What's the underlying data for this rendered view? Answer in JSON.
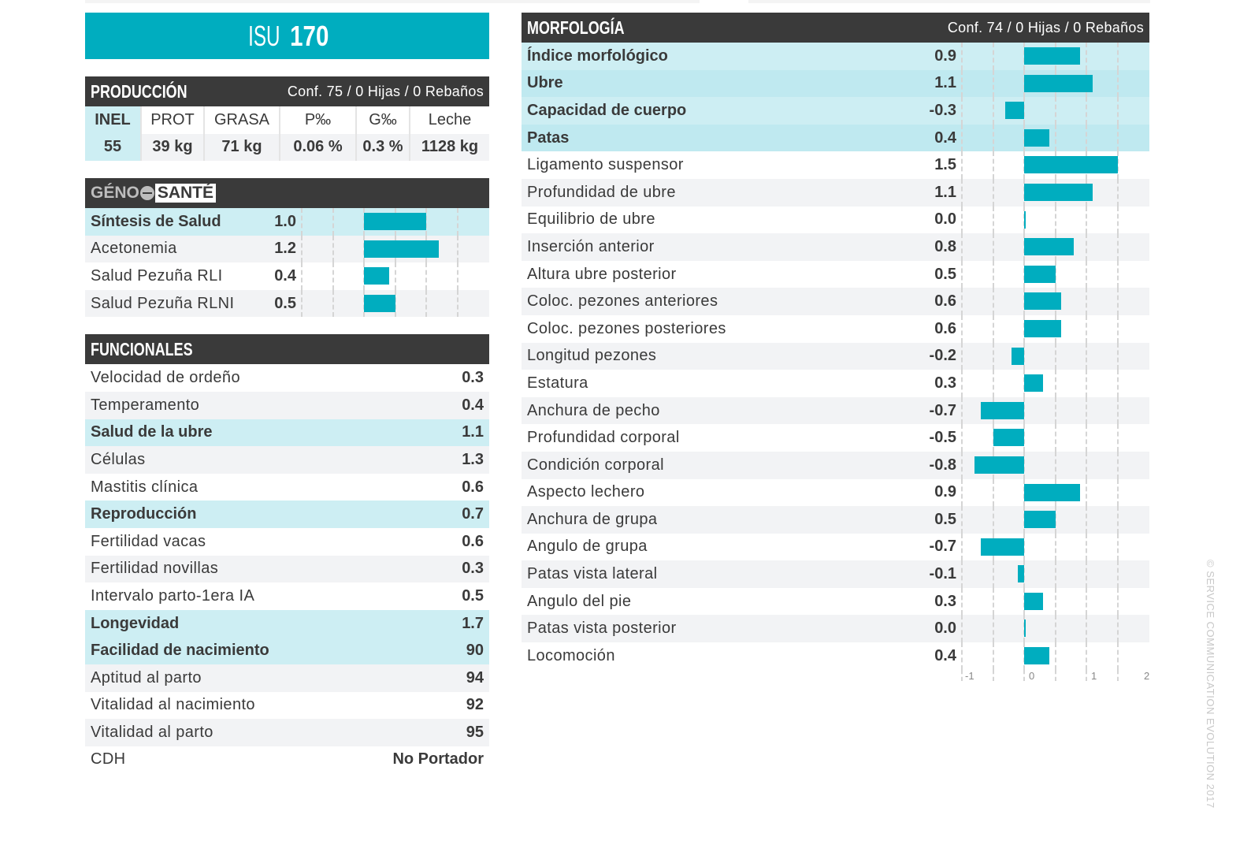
{
  "isu": {
    "label": "ISU",
    "value": "170"
  },
  "produccion": {
    "title": "PRODUCCIÓN",
    "conf": "Conf. 75 / 0 Hijas / 0 Rebaños",
    "headers": [
      "INEL",
      "PROT",
      "GRASA",
      "P‰",
      "G‰",
      "Leche"
    ],
    "values": [
      "55",
      "39 kg",
      "71 kg",
      "0.06 %",
      "0.3 %",
      "1128 kg"
    ]
  },
  "genosante": {
    "logo_left": "GÉNO",
    "logo_right": "SANTÉ",
    "rows": [
      {
        "label": "Síntesis de Salud",
        "value": "1.0",
        "num": 1.0,
        "hl": true
      },
      {
        "label": "Acetonemia",
        "value": "1.2",
        "num": 1.2
      },
      {
        "label": "Salud Pezuña RLI",
        "value": "0.4",
        "num": 0.4
      },
      {
        "label": "Salud Pezuña RLNI",
        "value": "0.5",
        "num": 0.5
      }
    ]
  },
  "funcionales": {
    "title": "FUNCIONALES",
    "rows": [
      {
        "label": "Velocidad de ordeño",
        "value": "0.3"
      },
      {
        "label": "Temperamento",
        "value": "0.4"
      },
      {
        "label": "Salud de la ubre",
        "value": "1.1",
        "hl": true
      },
      {
        "label": "Células",
        "value": "1.3"
      },
      {
        "label": "Mastitis clínica",
        "value": "0.6"
      },
      {
        "label": "Reproducción",
        "value": "0.7",
        "hl": true
      },
      {
        "label": "Fertilidad vacas",
        "value": "0.6"
      },
      {
        "label": "Fertilidad novillas",
        "value": "0.3"
      },
      {
        "label": "Intervalo parto-1era IA",
        "value": "0.5"
      },
      {
        "label": "Longevidad",
        "value": "1.7",
        "hl": true
      },
      {
        "label": "Facilidad de nacimiento",
        "value": "90",
        "hl": true
      },
      {
        "label": "Aptitud al parto",
        "value": "94"
      },
      {
        "label": "Vitalidad al nacimiento",
        "value": "92"
      },
      {
        "label": "Vitalidad al parto",
        "value": "95"
      },
      {
        "label": "CDH",
        "value": "No Portador"
      }
    ]
  },
  "morfologia": {
    "title": "MORFOLOGÍA",
    "conf": "Conf. 74 / 0 Hijas / 0 Rebaños",
    "axis_ticks": [
      "-1",
      "0",
      "1",
      "2"
    ],
    "rows": [
      {
        "label": "Índice morfológico",
        "value": "0.9",
        "num": 0.9,
        "hl": true
      },
      {
        "label": "Ubre",
        "value": "1.1",
        "num": 1.1,
        "hl": true
      },
      {
        "label": "Capacidad de cuerpo",
        "value": "-0.3",
        "num": -0.3,
        "hl": true
      },
      {
        "label": "Patas",
        "value": "0.4",
        "num": 0.4,
        "hl": true
      },
      {
        "label": "Ligamento suspensor",
        "value": "1.5",
        "num": 1.5
      },
      {
        "label": "Profundidad de ubre",
        "value": "1.1",
        "num": 1.1
      },
      {
        "label": "Equilibrio de ubre",
        "value": "0.0",
        "num": 0.0
      },
      {
        "label": "Inserción anterior",
        "value": "0.8",
        "num": 0.8
      },
      {
        "label": "Altura ubre posterior",
        "value": "0.5",
        "num": 0.5
      },
      {
        "label": "Coloc. pezones anteriores",
        "value": "0.6",
        "num": 0.6
      },
      {
        "label": "Coloc. pezones posteriores",
        "value": "0.6",
        "num": 0.6
      },
      {
        "label": "Longitud pezones",
        "value": "-0.2",
        "num": -0.2
      },
      {
        "label": "Estatura",
        "value": "0.3",
        "num": 0.3
      },
      {
        "label": "Anchura de pecho",
        "value": "-0.7",
        "num": -0.7
      },
      {
        "label": "Profundidad corporal",
        "value": "-0.5",
        "num": -0.5
      },
      {
        "label": "Condición corporal",
        "value": "-0.8",
        "num": -0.8
      },
      {
        "label": "Aspecto lechero",
        "value": "0.9",
        "num": 0.9
      },
      {
        "label": "Anchura de grupa",
        "value": "0.5",
        "num": 0.5
      },
      {
        "label": "Angulo de grupa",
        "value": "-0.7",
        "num": -0.7
      },
      {
        "label": "Patas vista lateral",
        "value": "-0.1",
        "num": -0.1
      },
      {
        "label": "Angulo del pie",
        "value": "0.3",
        "num": 0.3
      },
      {
        "label": "Patas vista posterior",
        "value": "0.0",
        "num": 0.0
      },
      {
        "label": "Locomoción",
        "value": "0.4",
        "num": 0.4
      }
    ]
  },
  "watermark": "© SERVICE COMMUNICATION EVOLUTION 2017",
  "colors": {
    "accent": "#00adbf",
    "header": "#3a3a3a",
    "highlight": "#cdeef3",
    "stripe": "#f2f3f5"
  }
}
